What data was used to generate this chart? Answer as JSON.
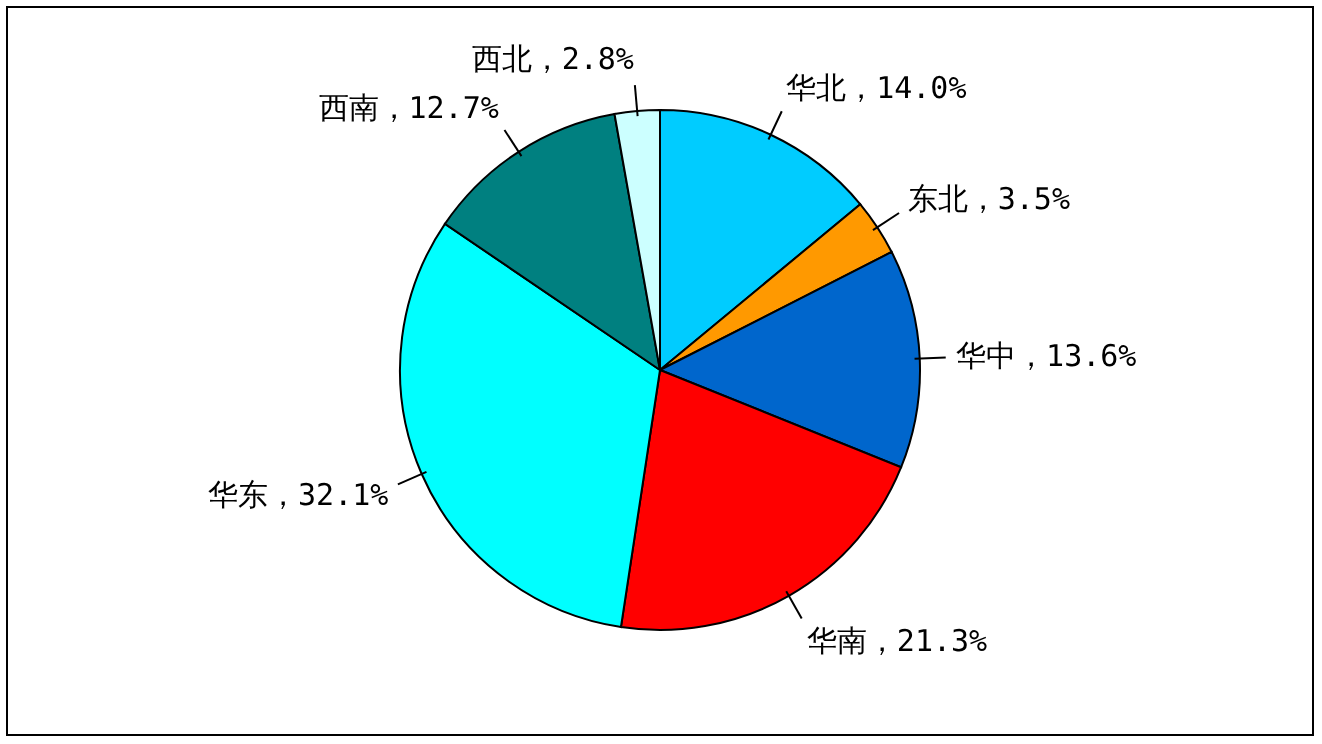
{
  "chart_data": {
    "type": "pie",
    "categories": [
      "华北",
      "东北",
      "华中",
      "华南",
      "华东",
      "西南",
      "西北"
    ],
    "values": [
      14.0,
      3.5,
      13.6,
      21.3,
      32.1,
      12.7,
      2.8
    ],
    "colors": [
      "#00ccff",
      "#ff9900",
      "#0066cc",
      "#ff0000",
      "#00ffff",
      "#008080",
      "#ccffff"
    ],
    "value_labels": [
      "，14.0%",
      "，3.5%",
      "，13.6%",
      "，21.3%",
      "，32.1%",
      "，12.7%",
      "，2.8%"
    ]
  }
}
